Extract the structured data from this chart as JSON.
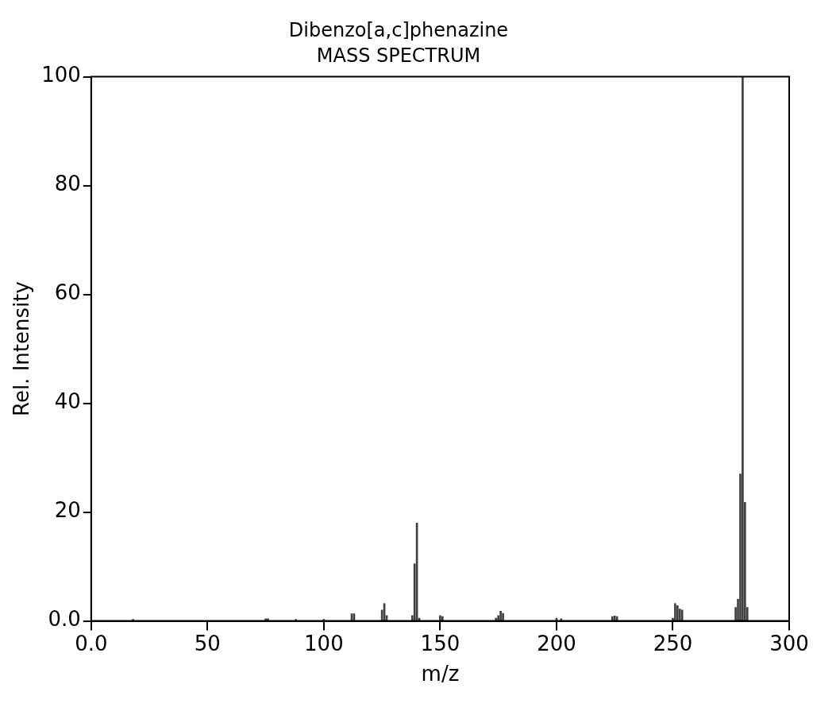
{
  "chart_data": {
    "type": "bar",
    "title": "Dibenzo[a,c]phenazine",
    "subtitle": "MASS SPECTRUM",
    "xlabel": "m/z",
    "ylabel": "Rel. Intensity",
    "x": [
      18,
      75,
      76,
      88,
      100,
      112,
      113,
      125,
      126,
      127,
      138,
      139,
      140,
      141,
      150,
      151,
      174,
      175,
      176,
      177,
      200,
      202,
      224,
      225,
      226,
      250,
      251,
      252,
      253,
      254,
      277,
      278,
      279,
      280,
      281,
      282
    ],
    "series": [
      {
        "color": "#404040",
        "values": [
          0.3,
          0.4,
          0.4,
          0.3,
          0.3,
          1.3,
          1.3,
          2,
          3.2,
          1,
          1,
          10.5,
          18,
          0.5,
          1,
          0.8,
          0.5,
          1,
          1.8,
          1.4,
          0.5,
          0.4,
          0.8,
          0.9,
          0.8,
          0.5,
          3.2,
          2.8,
          2.2,
          2,
          2.5,
          4,
          27,
          100,
          21.8,
          2.5
        ]
      }
    ],
    "xlim": [
      0,
      300
    ],
    "xticks": [
      {
        "value": 0,
        "label": "0.0"
      },
      50,
      100,
      150,
      200,
      250,
      300
    ],
    "ylim": [
      0,
      100
    ],
    "yticks": [
      {
        "value": 0,
        "label": "0.0"
      },
      20,
      40,
      60,
      80,
      100
    ],
    "grid": false,
    "legend": false
  }
}
